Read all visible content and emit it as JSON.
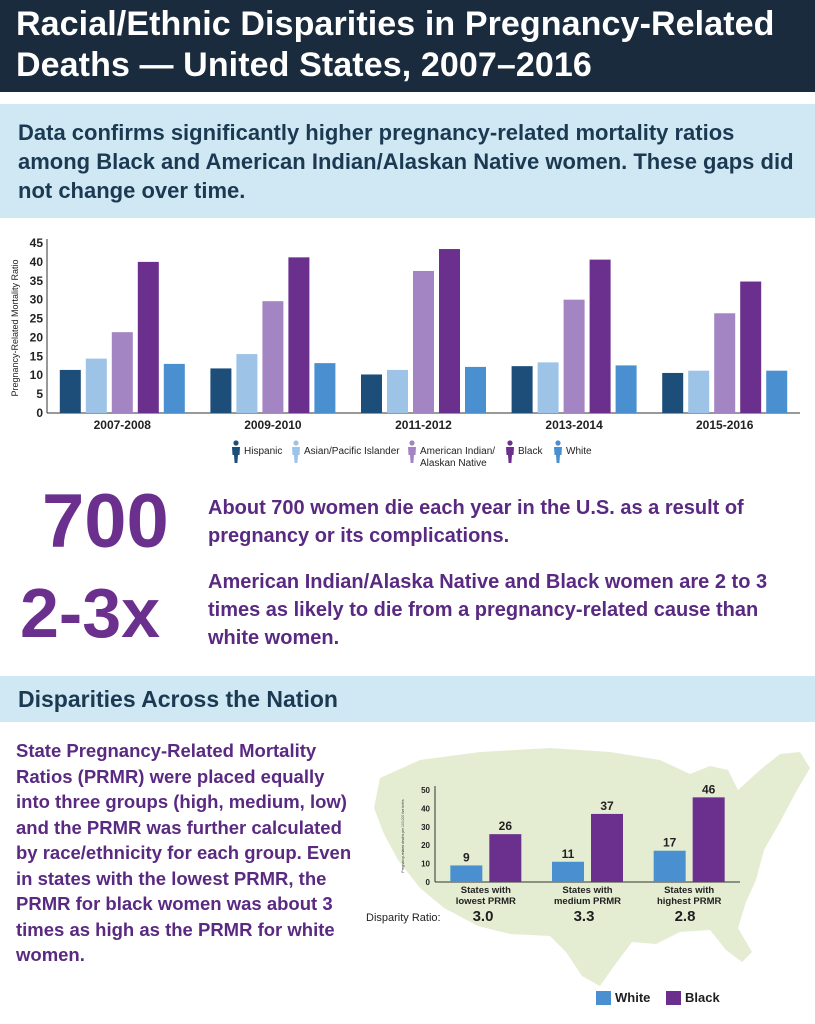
{
  "header": {
    "title": "Racial/Ethnic Disparities in Pregnancy-Related Deaths — United States, 2007–2016"
  },
  "subhead": {
    "text": "Data confirms significantly higher pregnancy-related mortality ratios among Black and American Indian/Alaskan Native women. These gaps did not change over time."
  },
  "colors": {
    "hispanic": "#1d4e79",
    "asian": "#9dc3e6",
    "aian": "#a485c3",
    "black": "#6b2f8e",
    "white": "#4a90d0",
    "navy": "#1a2b3d",
    "band": "#cfe8f4",
    "purple_text": "#5a2a82",
    "map": "#e4edd2"
  },
  "stats": [
    {
      "number": "700",
      "text": "About 700 women die each year in the U.S. as a result of pregnancy or its complications."
    },
    {
      "number": "2-3x",
      "text": "American Indian/Alaska Native and Black women are 2 to 3 times as likely to die from a pregnancy-related cause than white women."
    }
  ],
  "section2": {
    "title": "Disparities Across the Nation",
    "paragraph": "State Pregnancy-Related Mortality Ratios (PRMR) were placed equally into three groups (high, medium, low) and the PRMR was further calculated by race/ethnicity for each group. Even in states with the lowest PRMR, the PRMR for black women was about 3 times as high as the PRMR for white women."
  },
  "chart_data": [
    {
      "type": "bar",
      "title": "",
      "ylabel": "Pregnancy-Related Mortality Ratio",
      "xlabel": "",
      "ylim": [
        0,
        45
      ],
      "yticks": [
        0,
        5,
        10,
        15,
        20,
        25,
        30,
        35,
        40,
        45
      ],
      "categories": [
        "2007-2008",
        "2009-2010",
        "2011-2012",
        "2013-2014",
        "2015-2016"
      ],
      "series": [
        {
          "name": "Hispanic",
          "color": "#1d4e79",
          "values": [
            11.4,
            11.8,
            10.2,
            12.4,
            10.6
          ]
        },
        {
          "name": "Asian/Pacific Islander",
          "color": "#9dc3e6",
          "values": [
            14.4,
            15.6,
            11.4,
            13.4,
            11.2
          ]
        },
        {
          "name": "American Indian/ Alaskan Native",
          "color": "#a485c3",
          "values": [
            21.4,
            29.6,
            37.6,
            30.0,
            26.4
          ]
        },
        {
          "name": "Black",
          "color": "#6b2f8e",
          "values": [
            40.0,
            41.2,
            43.4,
            40.6,
            34.8
          ]
        },
        {
          "name": "White",
          "color": "#4a90d0",
          "values": [
            13.0,
            13.2,
            12.2,
            12.6,
            11.2
          ]
        }
      ],
      "legend": "bottom",
      "grid": false
    },
    {
      "type": "bar",
      "title": "",
      "ylabel": "Pregnancy-related deaths per 100,000 live births",
      "ylim": [
        0,
        50
      ],
      "yticks": [
        0,
        10,
        20,
        30,
        40,
        50
      ],
      "categories": [
        "States with lowest PRMR",
        "States with medium PRMR",
        "States with highest PRMR"
      ],
      "series": [
        {
          "name": "White",
          "color": "#4a90d0",
          "values": [
            9,
            11,
            17
          ]
        },
        {
          "name": "Black",
          "color": "#6b2f8e",
          "values": [
            26,
            37,
            46
          ]
        }
      ],
      "disparity_label": "Disparity Ratio:",
      "disparity_ratios": [
        "3.0",
        "3.3",
        "2.8"
      ],
      "legend": "bottom-right",
      "grid": false
    }
  ]
}
